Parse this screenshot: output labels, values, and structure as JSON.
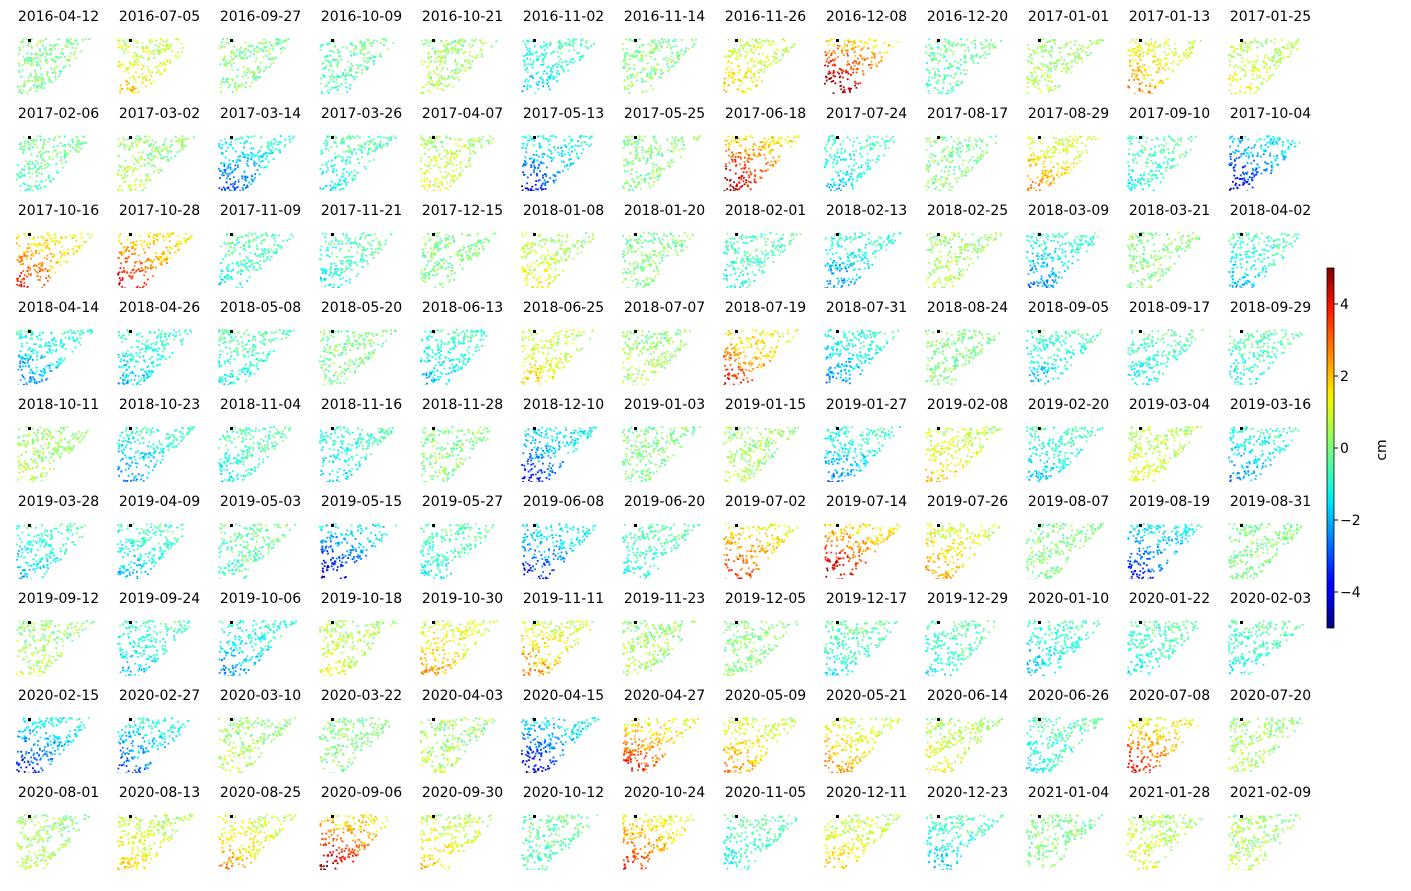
{
  "chart_data": {
    "type": "heatmap",
    "colormap": "jet",
    "panels": [
      "2016-04-12",
      "2016-07-05",
      "2016-09-27",
      "2016-10-09",
      "2016-10-21",
      "2016-11-02",
      "2016-11-14",
      "2016-11-26",
      "2016-12-08",
      "2016-12-20",
      "2017-01-01",
      "2017-01-13",
      "2017-01-25",
      "2017-02-06",
      "2017-03-02",
      "2017-03-14",
      "2017-03-26",
      "2017-04-07",
      "2017-05-13",
      "2017-05-25",
      "2017-06-18",
      "2017-07-24",
      "2017-08-17",
      "2017-08-29",
      "2017-09-10",
      "2017-10-04",
      "2017-10-16",
      "2017-10-28",
      "2017-11-09",
      "2017-11-21",
      "2017-12-15",
      "2018-01-08",
      "2018-01-20",
      "2018-02-01",
      "2018-02-13",
      "2018-02-25",
      "2018-03-09",
      "2018-03-21",
      "2018-04-02",
      "2018-04-14",
      "2018-04-26",
      "2018-05-08",
      "2018-05-20",
      "2018-06-13",
      "2018-06-25",
      "2018-07-07",
      "2018-07-19",
      "2018-07-31",
      "2018-08-24",
      "2018-09-05",
      "2018-09-17",
      "2018-09-29",
      "2018-10-11",
      "2018-10-23",
      "2018-11-04",
      "2018-11-16",
      "2018-11-28",
      "2018-12-10",
      "2019-01-03",
      "2019-01-15",
      "2019-01-27",
      "2019-02-08",
      "2019-02-20",
      "2019-03-04",
      "2019-03-16",
      "2019-03-28",
      "2019-04-09",
      "2019-05-03",
      "2019-05-15",
      "2019-05-27",
      "2019-06-08",
      "2019-06-20",
      "2019-07-02",
      "2019-07-14",
      "2019-07-26",
      "2019-08-07",
      "2019-08-19",
      "2019-08-31",
      "2019-09-12",
      "2019-09-24",
      "2019-10-06",
      "2019-10-18",
      "2019-10-30",
      "2019-11-11",
      "2019-11-23",
      "2019-12-05",
      "2019-12-17",
      "2019-12-29",
      "2020-01-10",
      "2020-01-22",
      "2020-02-03",
      "2020-02-15",
      "2020-02-27",
      "2020-03-10",
      "2020-03-22",
      "2020-04-03",
      "2020-04-15",
      "2020-04-27",
      "2020-05-09",
      "2020-05-21",
      "2020-06-14",
      "2020-06-26",
      "2020-07-08",
      "2020-07-20",
      "2020-08-01",
      "2020-08-13",
      "2020-08-25",
      "2020-09-06",
      "2020-09-30",
      "2020-10-12",
      "2020-10-24",
      "2020-11-05",
      "2020-12-11",
      "2020-12-23",
      "2021-01-04",
      "2021-01-28",
      "2021-02-09"
    ],
    "panel_mean_cm": [
      0.0,
      1.5,
      0.0,
      -0.5,
      0.5,
      -1.5,
      0.0,
      1.5,
      4.5,
      -0.5,
      0.5,
      2.0,
      1.0,
      -0.5,
      0.5,
      -2.5,
      -1.0,
      1.0,
      -3.0,
      0.0,
      4.0,
      -1.5,
      0.0,
      2.0,
      -1.0,
      -3.5,
      3.0,
      3.5,
      -1.0,
      -1.0,
      0.0,
      1.0,
      0.0,
      -1.0,
      -2.0,
      0.5,
      -2.0,
      0.0,
      -1.5,
      -2.0,
      -1.5,
      -1.0,
      0.0,
      -1.5,
      1.5,
      0.5,
      3.0,
      -2.0,
      0.0,
      -1.5,
      -1.0,
      -1.0,
      0.5,
      -2.0,
      -1.0,
      -1.5,
      0.0,
      -3.0,
      0.0,
      0.5,
      -2.0,
      1.5,
      -1.5,
      1.0,
      -2.0,
      -1.5,
      -1.5,
      -0.5,
      -3.5,
      -1.0,
      -3.0,
      -1.0,
      3.0,
      4.0,
      2.0,
      0.0,
      -3.0,
      0.0,
      0.5,
      -1.5,
      -2.0,
      1.0,
      2.0,
      2.0,
      0.5,
      0.0,
      -1.0,
      -1.0,
      -1.5,
      -1.0,
      -1.0,
      -3.0,
      -2.5,
      0.5,
      0.0,
      0.5,
      -3.5,
      3.0,
      2.0,
      2.0,
      1.0,
      -1.0,
      3.0,
      0.5,
      0.5,
      1.5,
      2.0,
      4.0,
      1.5,
      -0.5,
      3.0,
      -1.0,
      1.5,
      -1.5,
      0.0,
      1.0,
      0.5
    ],
    "colorbar": {
      "label": "cm",
      "ticks": [
        4,
        2,
        0,
        -2,
        -4
      ],
      "tick_labels": [
        "4",
        "2",
        "0",
        "−2",
        "−4"
      ],
      "range": [
        -5,
        5
      ]
    }
  }
}
